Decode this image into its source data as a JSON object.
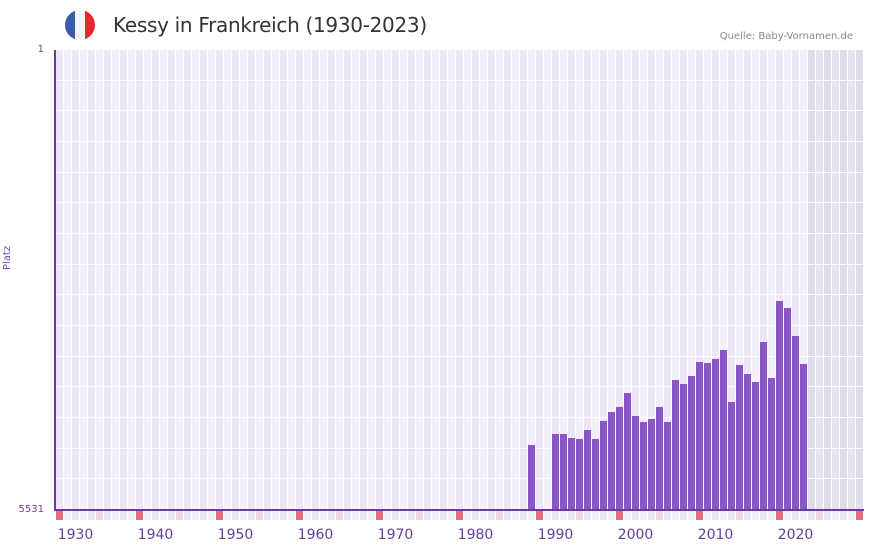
{
  "header": {
    "title": "Kessy in Frankreich (1930-2023)",
    "source": "Quelle: Baby-Vornamen.de",
    "flag": {
      "colors": [
        "#3b5bab",
        "#f4f4f6",
        "#e8262c"
      ]
    }
  },
  "colors": {
    "bar": "#8c56c8",
    "axis": "#6a3d9a",
    "grid_a": "#ece6f8",
    "grid_b": "#f2eefb",
    "future_a": "#e0dcec",
    "future_b": "#e6e2f0",
    "decade_mark": "#e0707c",
    "half_decade_mark": "#f4d8e0"
  },
  "chart_data": {
    "type": "bar",
    "title": "Kessy in Frankreich (1930-2023)",
    "xlabel": "",
    "ylabel": "Platz",
    "y_inverted": true,
    "ylim": [
      5531,
      1
    ],
    "y_ticks": [
      "1",
      "5531"
    ],
    "x_range": [
      1928,
      2028
    ],
    "x_ticks": [
      "1930",
      "1940",
      "1950",
      "1960",
      "1970",
      "1980",
      "1990",
      "2000",
      "2010",
      "2020"
    ],
    "future_shade_from": 2022,
    "grid": true,
    "legend": null,
    "categories": [
      1987,
      1990,
      1991,
      1992,
      1993,
      1994,
      1995,
      1996,
      1997,
      1998,
      1999,
      2000,
      2001,
      2002,
      2003,
      2004,
      2005,
      2006,
      2007,
      2008,
      2009,
      2010,
      2011,
      2012,
      2013,
      2014,
      2015,
      2016,
      2017,
      2018,
      2019,
      2020,
      2021
    ],
    "values": [
      4749,
      4617,
      4617,
      4665,
      4677,
      4569,
      4677,
      4460,
      4352,
      4292,
      4124,
      4400,
      4472,
      4436,
      4292,
      4472,
      3967,
      4015,
      3919,
      3750,
      3762,
      3714,
      3606,
      4232,
      3786,
      3895,
      3991,
      3510,
      3943,
      3017,
      3101,
      3438,
      3774
    ]
  }
}
